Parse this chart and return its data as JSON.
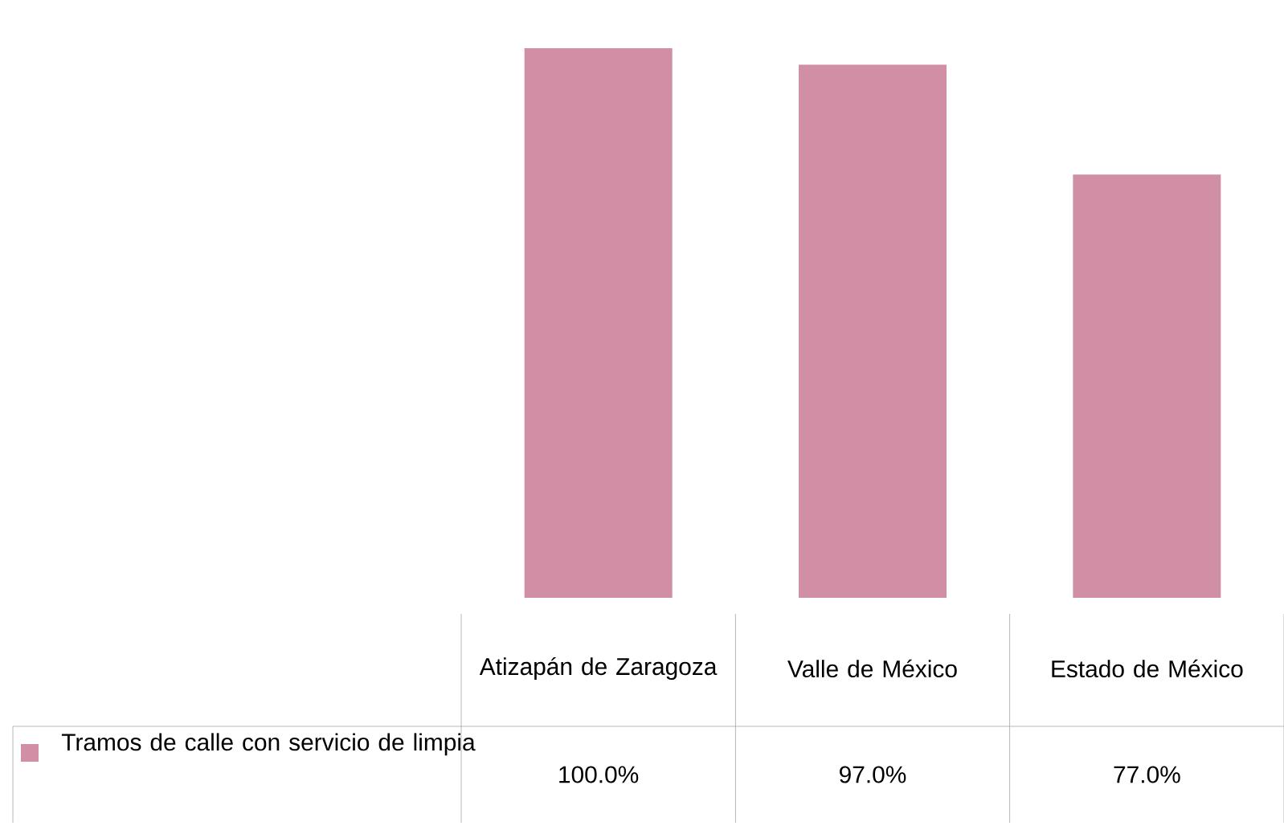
{
  "chart_data": {
    "type": "bar",
    "categories": [
      "Atizapán de Zaragoza",
      "Valle de México",
      "Estado de México"
    ],
    "series": [
      {
        "name": "Tramos de calle con servicio de limpia",
        "color": "#d08fa5",
        "values": [
          100,
          97,
          77
        ],
        "value_labels": [
          "100.0%",
          "97.0%",
          "77.0%"
        ]
      }
    ]
  }
}
